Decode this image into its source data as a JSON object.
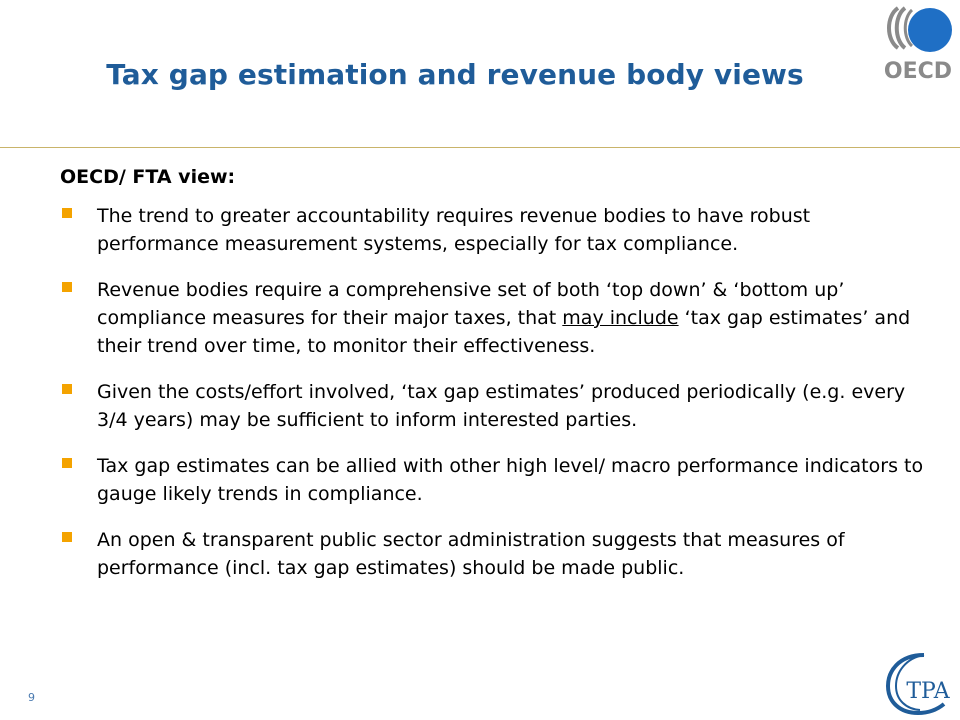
{
  "slide": {
    "title": "Tax gap estimation and revenue body views",
    "subheading": "OECD/ FTA view:",
    "bullets": [
      {
        "text": "The trend to greater accountability requires  revenue bodies to have robust performance measurement systems, especially for tax compliance."
      },
      {
        "before": "Revenue bodies require a comprehensive set of both ‘top down’ & ‘bottom up’ compliance measures for their major taxes, that ",
        "underlined": "may include",
        "after": " ‘tax gap estimates’ and their trend over time, to monitor their effectiveness."
      },
      {
        "text": "Given the costs/effort involved, ‘tax gap estimates’ produced periodically (e.g. every 3/4 years) may be sufficient to inform interested parties."
      },
      {
        "text": "Tax gap estimates can be allied with other high level/ macro performance indicators to gauge likely trends in compliance."
      },
      {
        "text": "An open & transparent public sector administration suggests that measures of performance (incl. tax gap estimates) should be made public."
      }
    ],
    "page_number": "9"
  },
  "logos": {
    "oecd_text": "OECD",
    "tpa_text": "TPA"
  },
  "colors": {
    "title": "#1F5C99",
    "bullet": "#F4A300",
    "rule": "#C9B46A",
    "oecd_blue": "#1F6FC5",
    "oecd_grey": "#8A8A8A"
  }
}
